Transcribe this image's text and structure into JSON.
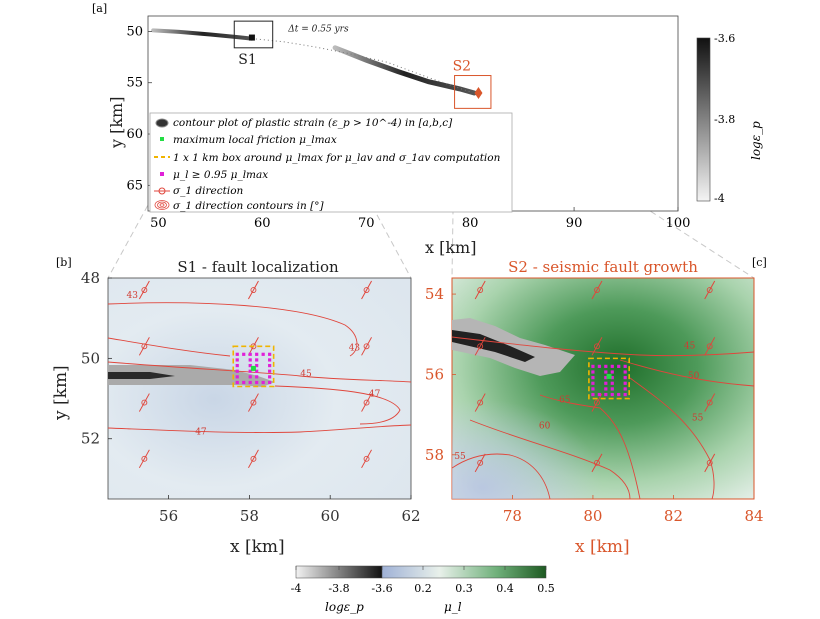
{
  "panel_labels": {
    "a": "[a]",
    "b": "[b]",
    "c": "[c]"
  },
  "colors": {
    "strain_dark": "#1a1a1a",
    "friction_low": "#b9c6e0",
    "friction_high": "#2a6e2a",
    "contour": "#e0463c",
    "s2_accent": "#d9562b",
    "green_marker": "#22dd44",
    "magenta_marker": "#e020d8",
    "box_dash": "#f0b400"
  },
  "chart_data": [
    {
      "id": "a",
      "type": "contour",
      "xlabel": "x [km]",
      "ylabel": "y [km]",
      "xlim": [
        49,
        100
      ],
      "ylim": [
        67.5,
        48.5
      ],
      "xticks": [
        50,
        60,
        70,
        80,
        90,
        100
      ],
      "yticks": [
        50,
        55,
        60,
        65
      ],
      "colorbar": {
        "label": "logε_p",
        "min": -4,
        "max": -3.6,
        "ticks": [
          "-3.6",
          "-3.8",
          "-4"
        ]
      },
      "annotations": {
        "s1": "S1",
        "s2": "S2",
        "dt": "Δt = 0.55 yrs"
      },
      "strain_traces": [
        {
          "x": [
            49.5,
            52,
            55,
            57.5,
            59
          ],
          "y": [
            49.9,
            50.05,
            50.3,
            50.55,
            50.7
          ]
        },
        {
          "x": [
            67,
            70,
            73,
            76,
            79,
            80.4
          ],
          "y": [
            51.6,
            52.8,
            53.9,
            54.9,
            55.6,
            56.0
          ]
        }
      ],
      "dotted_path": {
        "x": [
          59,
          62,
          65,
          68,
          72,
          76,
          80
        ],
        "y": [
          50.7,
          51.0,
          51.5,
          52.1,
          53.0,
          54.5,
          55.9
        ]
      },
      "s1_box": {
        "x": [
          57.3,
          61
        ],
        "y": [
          49.0,
          51.6
        ]
      },
      "s2_box": {
        "x": [
          78.5,
          82
        ],
        "y": [
          54.3,
          57.5
        ]
      },
      "s1_marker": {
        "x": 59,
        "y": 50.6
      },
      "s2_marker": {
        "x": 80.8,
        "y": 56.0
      },
      "legend": [
        "contour plot of plastic strain (ε_p > 10^-4) in [a,b,c]",
        "maximum local friction μ_lmax",
        "1 x 1 km box around μ_lmax for μ_lav and σ_1av computation",
        "μ_l ≥ 0.95 μ_lmax",
        "σ_1 direction",
        "σ_1 direction contours in [°]"
      ]
    },
    {
      "id": "b",
      "type": "heatmap",
      "title": "S1 - fault localization",
      "xlabel": "x [km]",
      "ylabel": "y [km]",
      "xlim": [
        54.5,
        62
      ],
      "ylim": [
        48,
        53.5
      ],
      "xticks": [
        56,
        58,
        60,
        62
      ],
      "yticks": [
        48,
        50,
        52
      ],
      "contour_labels": [
        {
          "text": "43",
          "x": 55.1,
          "y": 48.5
        },
        {
          "text": "43",
          "x": 60.6,
          "y": 49.8
        },
        {
          "text": "45",
          "x": 59.4,
          "y": 50.45
        },
        {
          "text": "47",
          "x": 61.1,
          "y": 50.95
        },
        {
          "text": "47",
          "x": 56.8,
          "y": 51.9
        }
      ],
      "sigma_x": [
        55.4,
        58.1,
        60.9
      ],
      "sigma_y": [
        48.3,
        49.7,
        51.1,
        52.5
      ],
      "max_friction": {
        "x": 58.1,
        "y": 50.25
      },
      "box": {
        "x": [
          57.6,
          58.6
        ],
        "y": [
          49.7,
          50.7
        ]
      }
    },
    {
      "id": "c",
      "type": "heatmap",
      "title": "S2 - seismic fault growth",
      "xlabel": "x [km]",
      "ylabel": "",
      "xlim": [
        76.5,
        84
      ],
      "ylim": [
        53.6,
        59.1
      ],
      "xticks": [
        78,
        80,
        82,
        84
      ],
      "yticks": [
        54,
        56,
        58
      ],
      "contour_labels": [
        {
          "text": "45",
          "x": 82.4,
          "y": 55.35
        },
        {
          "text": "50",
          "x": 82.5,
          "y": 56.1
        },
        {
          "text": "55",
          "x": 82.6,
          "y": 57.15
        },
        {
          "text": "60",
          "x": 78.8,
          "y": 57.35
        },
        {
          "text": "65",
          "x": 79.3,
          "y": 56.7
        },
        {
          "text": "55",
          "x": 76.7,
          "y": 58.1
        }
      ],
      "sigma_x": [
        77.2,
        80.1,
        82.9
      ],
      "sigma_y": [
        53.9,
        55.3,
        56.7,
        58.2
      ],
      "max_friction": {
        "x": 80.4,
        "y": 56.05
      },
      "box": {
        "x": [
          79.9,
          80.9
        ],
        "y": [
          55.6,
          56.6
        ]
      }
    },
    {
      "id": "colorbar_bottom",
      "type": "colorbar",
      "strain_label": "logε_p",
      "friction_label": "μ_l",
      "ticks": [
        "-4",
        "-3.8",
        "-3.6",
        "0.2",
        "0.3",
        "0.4",
        "0.5"
      ]
    }
  ]
}
